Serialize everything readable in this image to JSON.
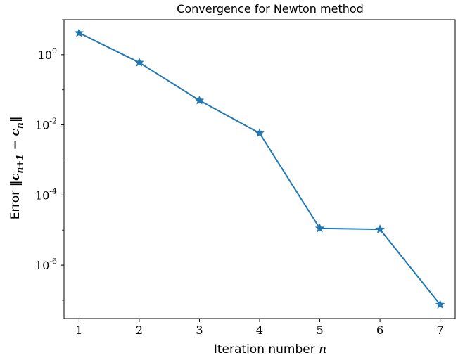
{
  "chart_data": {
    "type": "line",
    "title": "Convergence for Newton method",
    "xlabel": "Iteration number",
    "xlabel_var": "n",
    "ylabel_prefix": "Error",
    "ylabel_math": "‖c",
    "ylabel_sub1": "n+1",
    "ylabel_mid": " − c",
    "ylabel_sub2": "n",
    "ylabel_end": "‖",
    "yscale": "log",
    "xlim": [
      0.75,
      7.25
    ],
    "ylim": [
      3e-08,
      10
    ],
    "x_ticks": [
      {
        "value": 1,
        "label": "1"
      },
      {
        "value": 2,
        "label": "2"
      },
      {
        "value": 3,
        "label": "3"
      },
      {
        "value": 4,
        "label": "4"
      },
      {
        "value": 5,
        "label": "5"
      },
      {
        "value": 6,
        "label": "6"
      },
      {
        "value": 7,
        "label": "7"
      }
    ],
    "y_ticks": [
      {
        "value": 1,
        "base": "10",
        "exp": "0"
      },
      {
        "value": 0.01,
        "base": "10",
        "exp": "-2"
      },
      {
        "value": 0.0001,
        "base": "10",
        "exp": "-4"
      },
      {
        "value": 1e-06,
        "base": "10",
        "exp": "-6"
      }
    ],
    "grid": false,
    "line_color": "#1f77b4",
    "marker": "star",
    "series": [
      {
        "x": [
          1,
          2,
          3,
          4,
          5,
          6,
          7
        ],
        "y": [
          4.2,
          0.6,
          0.05,
          0.0058,
          1.12e-05,
          1.05e-05,
          7.5e-08
        ]
      }
    ]
  }
}
